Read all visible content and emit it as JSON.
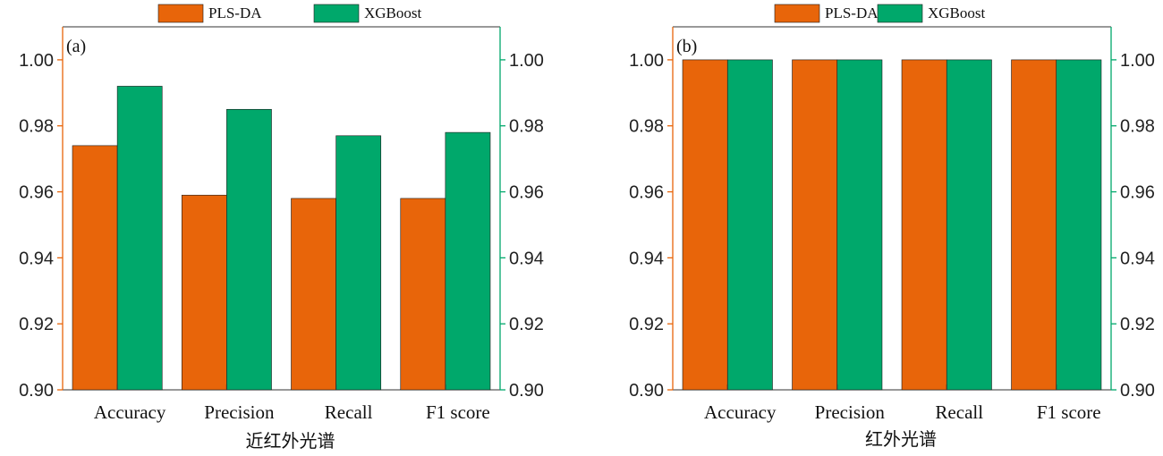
{
  "colors": {
    "pls_da": "#E8650A",
    "xgboost": "#00A86B",
    "left_axis": "#E8650A",
    "right_axis": "#00A86B"
  },
  "legend_position": "top-center",
  "chart_data": [
    {
      "type": "bar",
      "panel_label": "(a)",
      "xlabel": "近红外光谱",
      "ylabel": "",
      "categories": [
        "Accuracy",
        "Precision",
        "Recall",
        "F1 score"
      ],
      "series": [
        {
          "name": "PLS-DA",
          "values": [
            0.974,
            0.959,
            0.958,
            0.958
          ]
        },
        {
          "name": "XGBoost",
          "values": [
            0.992,
            0.985,
            0.977,
            0.978
          ]
        }
      ],
      "ylim": [
        0.9,
        1.01
      ],
      "yticks": [
        "0.90",
        "0.92",
        "0.94",
        "0.96",
        "0.98",
        "1.00"
      ],
      "dual_y_axis": true,
      "grid": false,
      "legend": "top-center"
    },
    {
      "type": "bar",
      "panel_label": "(b)",
      "xlabel": "红外光谱",
      "ylabel": "",
      "categories": [
        "Accuracy",
        "Precision",
        "Recall",
        "F1 score"
      ],
      "series": [
        {
          "name": "PLS-DA",
          "values": [
            1.0,
            1.0,
            1.0,
            1.0
          ]
        },
        {
          "name": "XGBoost",
          "values": [
            1.0,
            1.0,
            1.0,
            1.0
          ]
        }
      ],
      "ylim": [
        0.9,
        1.01
      ],
      "yticks": [
        "0.90",
        "0.92",
        "0.94",
        "0.96",
        "0.98",
        "1.00"
      ],
      "dual_y_axis": true,
      "grid": false,
      "legend": "top-center"
    }
  ]
}
